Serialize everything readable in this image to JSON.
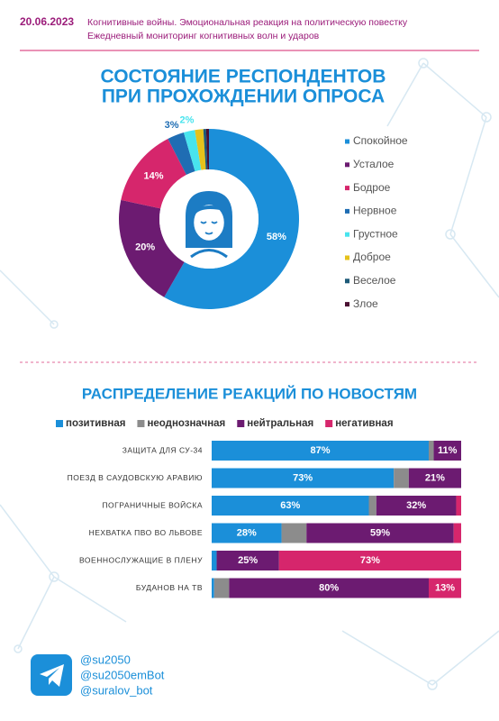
{
  "header": {
    "date": "20.06.2023",
    "lines": [
      "Когнитивные войны. Эмоциональная реакция на политическую повестку",
      "Ежедневный мониторинг когнитивных волн и ударов"
    ]
  },
  "chart_data": [
    {
      "type": "pie",
      "title": [
        "СОСТОЯНИЕ РЕСПОНДЕНТОВ",
        "ПРИ ПРОХОЖДЕНИИ ОПРОСА"
      ],
      "categories": [
        "Спокойное",
        "Усталое",
        "Бодрое",
        "Нервное",
        "Грустное",
        "Доброе",
        "Веселое",
        "Злое"
      ],
      "values": [
        58,
        20,
        14,
        3,
        2,
        1.5,
        0.5,
        0.5
      ],
      "value_labels": [
        "58%",
        "20%",
        "14%",
        "3%",
        "2%",
        null,
        null,
        null
      ],
      "colors": [
        "#1b8fd9",
        "#6c1b71",
        "#d6266c",
        "#1f6db3",
        "#48e4ee",
        "#e6c21b",
        "#1d5a78",
        "#4b1032"
      ],
      "legend": "right"
    },
    {
      "type": "stacked-barh",
      "title": "РАСПРЕДЕЛЕНИЕ РЕАКЦИЙ ПО НОВОСТЯМ",
      "categories": [
        "ЗАЩИТА ДЛЯ СУ-34",
        "ПОЕЗД В САУДОВСКУЮ АРАВИЮ",
        "ПОГРАНИЧНЫЕ ВОЙСКА",
        "НЕХВАТКА ПВО ВО ЛЬВОВЕ",
        "ВОЕННОСЛУЖАЩИЕ В ПЛЕНУ",
        "БУДАНОВ НА ТВ"
      ],
      "xlim": [
        0,
        100
      ],
      "legend": "top",
      "series": [
        {
          "name": "позитивная",
          "color": "#1b8fd9",
          "values": [
            87,
            73,
            63,
            28,
            2,
            1
          ],
          "value_labels": [
            "87%",
            "73%",
            "63%",
            "28%",
            null,
            null
          ]
        },
        {
          "name": "неоднозначная",
          "color": "#8c8c8c",
          "values": [
            2,
            6,
            3,
            10,
            0,
            6
          ],
          "value_labels": [
            null,
            null,
            null,
            null,
            null,
            null
          ]
        },
        {
          "name": "нейтральная",
          "color": "#6c1b71",
          "values": [
            11,
            21,
            32,
            59,
            25,
            80
          ],
          "value_labels": [
            "11%",
            "21%",
            "32%",
            "59%",
            "25%",
            "80%"
          ]
        },
        {
          "name": "негативная",
          "color": "#d6266c",
          "values": [
            0,
            0,
            2,
            3,
            73,
            13
          ],
          "value_labels": [
            null,
            null,
            null,
            null,
            "73%",
            "13%"
          ]
        }
      ]
    }
  ],
  "footer": {
    "handles": [
      "@su2050",
      "@su2050emBot",
      "@suralov_bot"
    ]
  }
}
